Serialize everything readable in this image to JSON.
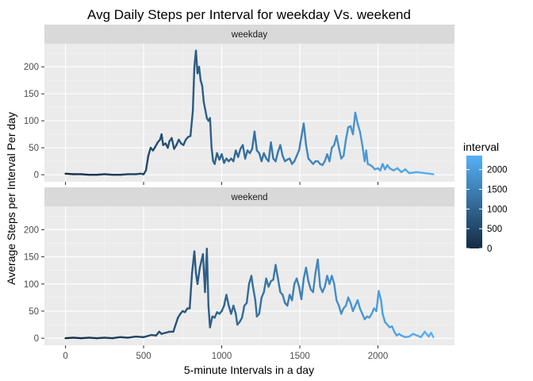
{
  "chart_data": {
    "type": "line",
    "title": "Avg Daily Steps per Interval for weekday Vs. weekend",
    "xlabel": "5-minute Intervals in a day",
    "ylabel": "Average Steps per Interval Per day",
    "xlim": [
      -135,
      2490
    ],
    "ylim": [
      -13,
      243
    ],
    "x_ticks": [
      0,
      500,
      1000,
      1500,
      2000
    ],
    "x_tick_labels": [
      "0",
      "500",
      "1000",
      "1500",
      "2000"
    ],
    "y_ticks": [
      0,
      50,
      100,
      150,
      200
    ],
    "y_tick_labels": [
      "0",
      "50",
      "100",
      "150",
      "200"
    ],
    "grid": true,
    "color_scale": {
      "variable": "interval",
      "low": 0,
      "high": 2355,
      "low_color": "#132B43",
      "high_color": "#56B1F7",
      "breaks": [
        0,
        500,
        1000,
        1500,
        2000
      ],
      "break_labels": [
        "0",
        "500",
        "1000",
        "1500",
        "2000"
      ]
    },
    "legend": {
      "title": "interval",
      "position": "right"
    },
    "facets": [
      {
        "label": "weekday",
        "points": [
          [
            0,
            2
          ],
          [
            50,
            1
          ],
          [
            100,
            1
          ],
          [
            150,
            0
          ],
          [
            200,
            0
          ],
          [
            250,
            1
          ],
          [
            300,
            0
          ],
          [
            350,
            0
          ],
          [
            400,
            1
          ],
          [
            450,
            1
          ],
          [
            480,
            2
          ],
          [
            500,
            1
          ],
          [
            515,
            8
          ],
          [
            530,
            35
          ],
          [
            545,
            50
          ],
          [
            560,
            45
          ],
          [
            575,
            52
          ],
          [
            590,
            60
          ],
          [
            605,
            65
          ],
          [
            615,
            75
          ],
          [
            625,
            55
          ],
          [
            640,
            58
          ],
          [
            655,
            50
          ],
          [
            665,
            62
          ],
          [
            680,
            68
          ],
          [
            695,
            48
          ],
          [
            710,
            55
          ],
          [
            725,
            65
          ],
          [
            740,
            58
          ],
          [
            755,
            55
          ],
          [
            770,
            65
          ],
          [
            785,
            70
          ],
          [
            800,
            72
          ],
          [
            815,
            118
          ],
          [
            825,
            200
          ],
          [
            835,
            230
          ],
          [
            845,
            188
          ],
          [
            855,
            200
          ],
          [
            865,
            175
          ],
          [
            875,
            165
          ],
          [
            885,
            135
          ],
          [
            895,
            120
          ],
          [
            905,
            105
          ],
          [
            915,
            100
          ],
          [
            925,
            105
          ],
          [
            935,
            50
          ],
          [
            945,
            25
          ],
          [
            955,
            20
          ],
          [
            970,
            40
          ],
          [
            985,
            28
          ],
          [
            1000,
            38
          ],
          [
            1015,
            22
          ],
          [
            1030,
            30
          ],
          [
            1045,
            25
          ],
          [
            1060,
            30
          ],
          [
            1075,
            25
          ],
          [
            1090,
            45
          ],
          [
            1105,
            33
          ],
          [
            1120,
            48
          ],
          [
            1135,
            55
          ],
          [
            1150,
            30
          ],
          [
            1165,
            45
          ],
          [
            1180,
            40
          ],
          [
            1195,
            48
          ],
          [
            1210,
            80
          ],
          [
            1225,
            45
          ],
          [
            1240,
            40
          ],
          [
            1255,
            25
          ],
          [
            1270,
            40
          ],
          [
            1285,
            30
          ],
          [
            1300,
            25
          ],
          [
            1315,
            60
          ],
          [
            1330,
            30
          ],
          [
            1345,
            25
          ],
          [
            1360,
            42
          ],
          [
            1375,
            55
          ],
          [
            1390,
            35
          ],
          [
            1405,
            25
          ],
          [
            1420,
            28
          ],
          [
            1435,
            30
          ],
          [
            1450,
            20
          ],
          [
            1465,
            25
          ],
          [
            1480,
            35
          ],
          [
            1495,
            45
          ],
          [
            1510,
            70
          ],
          [
            1525,
            95
          ],
          [
            1540,
            55
          ],
          [
            1555,
            30
          ],
          [
            1570,
            25
          ],
          [
            1585,
            20
          ],
          [
            1600,
            25
          ],
          [
            1615,
            25
          ],
          [
            1630,
            20
          ],
          [
            1645,
            18
          ],
          [
            1660,
            25
          ],
          [
            1675,
            38
          ],
          [
            1690,
            25
          ],
          [
            1705,
            50
          ],
          [
            1720,
            55
          ],
          [
            1735,
            72
          ],
          [
            1750,
            50
          ],
          [
            1765,
            30
          ],
          [
            1780,
            35
          ],
          [
            1795,
            65
          ],
          [
            1810,
            88
          ],
          [
            1825,
            90
          ],
          [
            1840,
            75
          ],
          [
            1855,
            115
          ],
          [
            1870,
            95
          ],
          [
            1885,
            80
          ],
          [
            1900,
            55
          ],
          [
            1915,
            25
          ],
          [
            1925,
            45
          ],
          [
            1935,
            20
          ],
          [
            1950,
            18
          ],
          [
            1965,
            15
          ],
          [
            1980,
            10
          ],
          [
            2000,
            12
          ],
          [
            2015,
            8
          ],
          [
            2030,
            20
          ],
          [
            2045,
            10
          ],
          [
            2060,
            18
          ],
          [
            2075,
            12
          ],
          [
            2100,
            8
          ],
          [
            2125,
            12
          ],
          [
            2150,
            5
          ],
          [
            2175,
            10
          ],
          [
            2200,
            3
          ],
          [
            2250,
            5
          ],
          [
            2300,
            3
          ],
          [
            2355,
            1
          ]
        ]
      },
      {
        "label": "weekend",
        "points": [
          [
            0,
            0
          ],
          [
            50,
            1
          ],
          [
            100,
            0
          ],
          [
            150,
            1
          ],
          [
            200,
            0
          ],
          [
            250,
            1
          ],
          [
            300,
            0
          ],
          [
            350,
            2
          ],
          [
            400,
            1
          ],
          [
            450,
            3
          ],
          [
            500,
            2
          ],
          [
            550,
            6
          ],
          [
            580,
            5
          ],
          [
            600,
            12
          ],
          [
            615,
            8
          ],
          [
            640,
            10
          ],
          [
            665,
            12
          ],
          [
            690,
            12
          ],
          [
            705,
            25
          ],
          [
            720,
            38
          ],
          [
            735,
            45
          ],
          [
            750,
            50
          ],
          [
            765,
            48
          ],
          [
            780,
            55
          ],
          [
            795,
            55
          ],
          [
            810,
            120
          ],
          [
            825,
            160
          ],
          [
            835,
            120
          ],
          [
            845,
            100
          ],
          [
            860,
            130
          ],
          [
            880,
            155
          ],
          [
            893,
            85
          ],
          [
            905,
            165
          ],
          [
            915,
            60
          ],
          [
            925,
            20
          ],
          [
            940,
            40
          ],
          [
            955,
            38
          ],
          [
            970,
            48
          ],
          [
            985,
            45
          ],
          [
            1000,
            50
          ],
          [
            1015,
            60
          ],
          [
            1030,
            80
          ],
          [
            1045,
            60
          ],
          [
            1060,
            45
          ],
          [
            1075,
            60
          ],
          [
            1090,
            45
          ],
          [
            1100,
            25
          ],
          [
            1115,
            30
          ],
          [
            1130,
            38
          ],
          [
            1145,
            60
          ],
          [
            1160,
            65
          ],
          [
            1175,
            100
          ],
          [
            1190,
            115
          ],
          [
            1200,
            95
          ],
          [
            1215,
            70
          ],
          [
            1225,
            40
          ],
          [
            1240,
            45
          ],
          [
            1255,
            75
          ],
          [
            1270,
            85
          ],
          [
            1285,
            110
          ],
          [
            1300,
            95
          ],
          [
            1315,
            105
          ],
          [
            1330,
            108
          ],
          [
            1345,
            135
          ],
          [
            1360,
            110
          ],
          [
            1375,
            85
          ],
          [
            1390,
            80
          ],
          [
            1405,
            65
          ],
          [
            1420,
            60
          ],
          [
            1435,
            80
          ],
          [
            1450,
            70
          ],
          [
            1465,
            100
          ],
          [
            1480,
            110
          ],
          [
            1495,
            95
          ],
          [
            1510,
            72
          ],
          [
            1525,
            110
          ],
          [
            1540,
            130
          ],
          [
            1555,
            105
          ],
          [
            1570,
            90
          ],
          [
            1585,
            85
          ],
          [
            1600,
            120
          ],
          [
            1615,
            145
          ],
          [
            1630,
            95
          ],
          [
            1645,
            85
          ],
          [
            1660,
            95
          ],
          [
            1675,
            115
          ],
          [
            1690,
            100
          ],
          [
            1705,
            115
          ],
          [
            1720,
            100
          ],
          [
            1735,
            70
          ],
          [
            1750,
            60
          ],
          [
            1765,
            45
          ],
          [
            1780,
            55
          ],
          [
            1795,
            60
          ],
          [
            1810,
            75
          ],
          [
            1825,
            65
          ],
          [
            1840,
            50
          ],
          [
            1855,
            60
          ],
          [
            1870,
            70
          ],
          [
            1885,
            55
          ],
          [
            1900,
            45
          ],
          [
            1915,
            35
          ],
          [
            1930,
            40
          ],
          [
            1945,
            38
          ],
          [
            1960,
            45
          ],
          [
            1975,
            55
          ],
          [
            1990,
            50
          ],
          [
            2005,
            87
          ],
          [
            2020,
            70
          ],
          [
            2030,
            45
          ],
          [
            2045,
            30
          ],
          [
            2060,
            25
          ],
          [
            2075,
            20
          ],
          [
            2090,
            22
          ],
          [
            2105,
            12
          ],
          [
            2120,
            5
          ],
          [
            2135,
            8
          ],
          [
            2150,
            5
          ],
          [
            2175,
            2
          ],
          [
            2200,
            3
          ],
          [
            2225,
            8
          ],
          [
            2250,
            5
          ],
          [
            2275,
            2
          ],
          [
            2300,
            12
          ],
          [
            2325,
            3
          ],
          [
            2340,
            10
          ],
          [
            2355,
            2
          ]
        ]
      }
    ]
  }
}
